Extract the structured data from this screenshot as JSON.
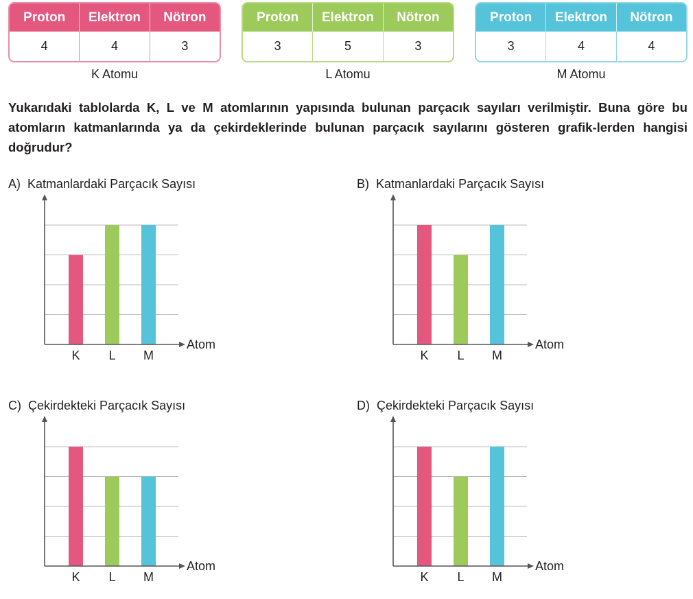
{
  "tables": [
    {
      "name": "K Atomu",
      "headers": [
        "Proton",
        "Elektron",
        "Nötron"
      ],
      "values": [
        "4",
        "4",
        "3"
      ],
      "color": "#e4577f",
      "border_color": "#e98ea6"
    },
    {
      "name": "L Atomu",
      "headers": [
        "Proton",
        "Elektron",
        "Nötron"
      ],
      "values": [
        "3",
        "5",
        "3"
      ],
      "color": "#9ccb5b",
      "border_color": "#b7da86"
    },
    {
      "name": "M Atomu",
      "headers": [
        "Proton",
        "Elektron",
        "Nötron"
      ],
      "values": [
        "3",
        "4",
        "4"
      ],
      "color": "#55c3d9",
      "border_color": "#93d8e6"
    }
  ],
  "question": "Yukarıdaki tablolarda K, L ve M atomlarının yapısında bulunan parçacık sayıları verilmiştir. Buna göre bu atomların katmanlarında ya da çekirdeklerinde bulunan parçacık sayılarını gösteren grafik-lerden hangisi doğrudur?",
  "chart_data": [
    {
      "option": "A)",
      "type": "bar",
      "title": "Katmanlardaki Parçacık Sayısı",
      "xlabel": "Atom",
      "categories": [
        "K",
        "L",
        "M"
      ],
      "values": [
        3,
        4,
        4
      ],
      "ylim": [
        0,
        4
      ],
      "grid": true
    },
    {
      "option": "B)",
      "type": "bar",
      "title": "Katmanlardaki Parçacık Sayısı",
      "xlabel": "Atom",
      "categories": [
        "K",
        "L",
        "M"
      ],
      "values": [
        4,
        3,
        4
      ],
      "ylim": [
        0,
        4
      ],
      "grid": true
    },
    {
      "option": "C)",
      "type": "bar",
      "title": "Çekirdekteki Parçacık Sayısı",
      "xlabel": "Atom",
      "categories": [
        "K",
        "L",
        "M"
      ],
      "values": [
        4,
        3,
        3
      ],
      "ylim": [
        0,
        4
      ],
      "grid": true
    },
    {
      "option": "D)",
      "type": "bar",
      "title": "Çekirdekteki Parçacık Sayısı",
      "xlabel": "Atom",
      "categories": [
        "K",
        "L",
        "M"
      ],
      "values": [
        4,
        3,
        4
      ],
      "ylim": [
        0,
        4
      ],
      "grid": true
    }
  ],
  "bar_colors": [
    "#e4577f",
    "#9ccb5b",
    "#55c3d9"
  ]
}
